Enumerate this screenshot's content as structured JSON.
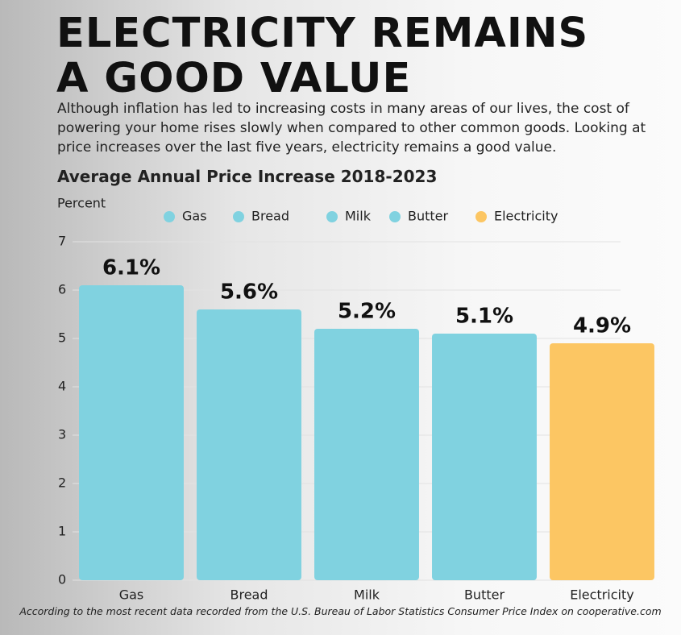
{
  "chart_data": {
    "type": "bar",
    "title": "ELECTRICITY REMAINS A GOOD VALUE",
    "subtitle": "Although inflation has led to increasing costs in many areas of our lives, the cost of powering your home rises slowly when compared to other common goods. Looking at price increases over the last five years, electricity remains a good value.",
    "chart_title": "Average Annual Price Increase 2018-2023",
    "y_label": "Percent",
    "categories": [
      "Gas",
      "Bread",
      "Milk",
      "Butter",
      "Electricity"
    ],
    "values": [
      6.1,
      5.6,
      5.2,
      5.1,
      4.9
    ],
    "value_labels": [
      "6.1%",
      "5.6%",
      "5.2%",
      "5.1%",
      "4.9%"
    ],
    "colors": [
      "#80d2e0",
      "#80d2e0",
      "#80d2e0",
      "#80d2e0",
      "#fcc663"
    ],
    "ylim": [
      0,
      7
    ],
    "yticks": [
      0,
      1,
      2,
      3,
      4,
      5,
      6,
      7
    ],
    "grid": true,
    "footnote": "According to the most recent data recorded from the U.S. Bureau of Labor Statistics Consumer Price Index on cooperative.com"
  }
}
